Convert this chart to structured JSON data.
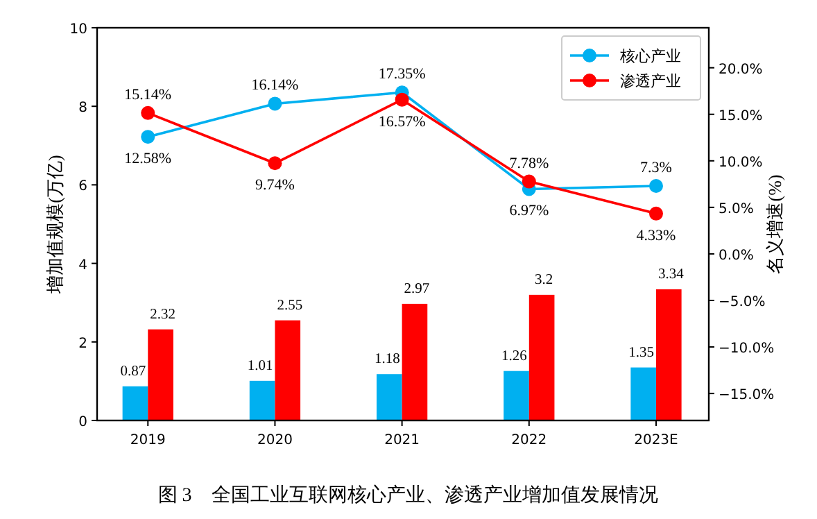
{
  "chart_data": {
    "type": "bar",
    "title": "图 3　全国工业互联网核心产业、渗透产业增加值发展情况",
    "categories": [
      "2019",
      "2020",
      "2021",
      "2022",
      "2023E"
    ],
    "ylabel": "增加值规模(万亿)",
    "y2label": "名义增速(%)",
    "ylim": [
      0,
      10
    ],
    "yticks": [
      0,
      2,
      4,
      6,
      8,
      10
    ],
    "y2lim": [
      -17.9,
      24.3
    ],
    "y2ticks": [
      {
        "value": -15,
        "label": "−15.0%"
      },
      {
        "value": -10,
        "label": "−10.0%"
      },
      {
        "value": -5,
        "label": "−5.0%"
      },
      {
        "value": 0,
        "label": "0.0%"
      },
      {
        "value": 5,
        "label": "5.0%"
      },
      {
        "value": 10,
        "label": "10.0%"
      },
      {
        "value": 15,
        "label": "15.0%"
      },
      {
        "value": 20,
        "label": "20.0%"
      }
    ],
    "legend": "top right",
    "series": [
      {
        "color": "#00b0f0",
        "values": [
          0.87,
          1.01,
          1.18,
          1.26,
          1.35
        ],
        "value_labels": [
          "0.87",
          "1.01",
          "1.18",
          "1.26",
          "1.35"
        ]
      },
      {
        "color": "#ff0000",
        "values": [
          2.32,
          2.55,
          2.97,
          3.2,
          3.34
        ],
        "value_labels": [
          "2.32",
          "2.55",
          "2.97",
          "3.2",
          "3.34"
        ]
      },
      {
        "type": "line",
        "axis": "y2",
        "name": "核心产业",
        "color": "#00b0f0",
        "marker": "circle",
        "values": [
          12.58,
          16.14,
          17.35,
          6.97,
          7.3
        ],
        "value_labels": [
          "12.58%",
          "16.14%",
          "17.35%",
          "6.97%",
          "7.3%"
        ]
      },
      {
        "type": "line",
        "axis": "y2",
        "name": "渗透产业",
        "color": "#ff0000",
        "marker": "circle",
        "values": [
          15.14,
          9.74,
          16.57,
          7.78,
          4.33
        ],
        "value_labels": [
          "15.14%",
          "9.74%",
          "16.57%",
          "7.78%",
          "4.33%"
        ]
      }
    ]
  }
}
